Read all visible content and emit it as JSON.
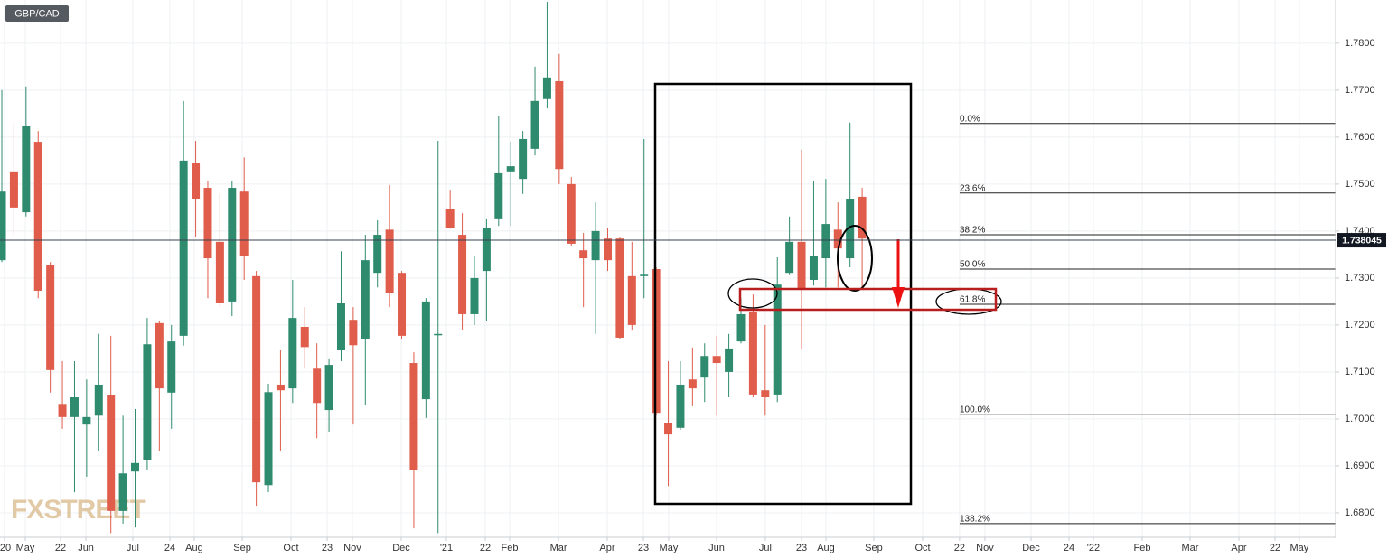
{
  "chart_data": {
    "type": "candlestick",
    "symbol": "GBP/CAD",
    "watermark": "FXSTREET",
    "up_color": "#2e8b6e",
    "down_color": "#e05c4b",
    "grid": true,
    "ylim": [
      1.6748,
      1.7892
    ],
    "yticks": [
      {
        "value": 1.68,
        "label": "1.6800"
      },
      {
        "value": 1.69,
        "label": "1.6900"
      },
      {
        "value": 1.7,
        "label": "1.7000"
      },
      {
        "value": 1.71,
        "label": "1.7100"
      },
      {
        "value": 1.72,
        "label": "1.7200"
      },
      {
        "value": 1.73,
        "label": "1.7300"
      },
      {
        "value": 1.74,
        "label": "1.7400"
      },
      {
        "value": 1.75,
        "label": "1.7500"
      },
      {
        "value": 1.76,
        "label": "1.7600"
      },
      {
        "value": 1.77,
        "label": "1.7700"
      },
      {
        "value": 1.78,
        "label": "1.7800"
      }
    ],
    "xlim": [
      -0.15,
      110.07
    ],
    "xticks": [
      {
        "value": 0.22,
        "label": "'20"
      },
      {
        "value": 1.94,
        "label": "May"
      },
      {
        "value": 4.85,
        "label": "22"
      },
      {
        "value": 6.94,
        "label": "Jun"
      },
      {
        "value": 10.81,
        "label": "Jul"
      },
      {
        "value": 13.87,
        "label": "24"
      },
      {
        "value": 15.88,
        "label": "Aug"
      },
      {
        "value": 19.84,
        "label": "Sep"
      },
      {
        "value": 23.86,
        "label": "Oct"
      },
      {
        "value": 26.85,
        "label": "23"
      },
      {
        "value": 28.93,
        "label": "Nov"
      },
      {
        "value": 32.96,
        "label": "Dec"
      },
      {
        "value": 36.69,
        "label": "'21"
      },
      {
        "value": 39.9,
        "label": "22"
      },
      {
        "value": 41.91,
        "label": "Feb"
      },
      {
        "value": 45.94,
        "label": "Mar"
      },
      {
        "value": 49.96,
        "label": "Apr"
      },
      {
        "value": 52.95,
        "label": "23"
      },
      {
        "value": 55.03,
        "label": "May"
      },
      {
        "value": 58.99,
        "label": "Jun"
      },
      {
        "value": 63.01,
        "label": "Jul"
      },
      {
        "value": 66.0,
        "label": "23"
      },
      {
        "value": 68.01,
        "label": "Aug"
      },
      {
        "value": 71.96,
        "label": "Sep"
      },
      {
        "value": 75.99,
        "label": "Oct"
      },
      {
        "value": 79.04,
        "label": "22"
      },
      {
        "value": 81.13,
        "label": "Nov"
      },
      {
        "value": 84.94,
        "label": "Dec"
      },
      {
        "value": 88.07,
        "label": "24"
      },
      {
        "value": 90.08,
        "label": "'22"
      },
      {
        "value": 94.11,
        "label": "Feb"
      },
      {
        "value": 98.06,
        "label": "Mar"
      },
      {
        "value": 102.09,
        "label": "Apr"
      },
      {
        "value": 105.07,
        "label": "22"
      },
      {
        "value": 107.08,
        "label": "May"
      }
    ],
    "open": [
      1.7338,
      1.7527,
      1.744,
      1.759,
      1.7327,
      1.7032,
      1.7004,
      1.6988,
      1.7007,
      1.705,
      1.6804,
      1.6888,
      1.6913,
      1.7204,
      1.7056,
      1.7177,
      1.7544,
      1.7492,
      1.7377,
      1.725,
      1.7484,
      1.7304,
      1.6859,
      1.7073,
      1.7065,
      1.7196,
      1.7107,
      1.7019,
      1.7146,
      1.7211,
      1.7171,
      1.7311,
      1.7403,
      1.7311,
      1.7119,
      1.7042,
      1.7179,
      1.7446,
      1.7392,
      1.7223,
      1.7315,
      1.7427,
      1.7527,
      1.7511,
      1.7575,
      1.7681,
      1.7719,
      1.75,
      1.7359,
      1.7338,
      1.7384,
      1.7384,
      1.7304,
      1.7304,
      1.7319,
      1.6992,
      1.6981,
      1.7084,
      1.7088,
      1.7134,
      1.71,
      1.7165,
      1.7228,
      1.7061,
      1.7052,
      1.7311,
      1.7377,
      1.7296,
      1.7342,
      1.7403,
      1.7342,
      1.7473
    ],
    "high": [
      1.77,
      1.7631,
      1.7708,
      1.7613,
      1.7334,
      1.7123,
      1.7123,
      1.7084,
      1.7181,
      1.7177,
      1.7007,
      1.7021,
      1.7215,
      1.7208,
      1.72,
      1.7677,
      1.7592,
      1.7507,
      1.7479,
      1.7507,
      1.7557,
      1.7315,
      1.7075,
      1.7146,
      1.7296,
      1.7238,
      1.7161,
      1.7127,
      1.7357,
      1.7238,
      1.7392,
      1.7423,
      1.7498,
      1.7315,
      1.7142,
      1.7257,
      1.7592,
      1.7488,
      1.7438,
      1.7346,
      1.7427,
      1.7646,
      1.759,
      1.7613,
      1.775,
      1.7888,
      1.7777,
      1.7515,
      1.7396,
      1.7461,
      1.7407,
      1.7388,
      1.7377,
      1.7596,
      1.7323,
      1.7123,
      1.7123,
      1.7152,
      1.7161,
      1.7177,
      1.7181,
      1.7257,
      1.7265,
      1.72,
      1.7344,
      1.7431,
      1.7573,
      1.7507,
      1.7511,
      1.7461,
      1.7631,
      1.7492
    ],
    "low": [
      1.7334,
      1.7392,
      1.7431,
      1.7257,
      1.7056,
      1.6979,
      1.6844,
      1.6877,
      1.6931,
      1.6757,
      1.6777,
      1.6769,
      1.6892,
      1.6931,
      1.6979,
      1.7156,
      1.7388,
      1.7257,
      1.7238,
      1.7219,
      1.7296,
      1.6815,
      1.6844,
      1.6931,
      1.7034,
      1.7107,
      1.6959,
      1.6973,
      1.7123,
      1.6988,
      1.703,
      1.728,
      1.7238,
      1.7169,
      1.6767,
      1.7002,
      1.6757,
      1.7405,
      1.719,
      1.72,
      1.7208,
      1.7411,
      1.7411,
      1.7479,
      1.7561,
      1.7661,
      1.75,
      1.7369,
      1.7238,
      1.7181,
      1.7315,
      1.7169,
      1.7188,
      1.7257,
      1.7007,
      1.6857,
      1.6977,
      1.7027,
      1.7036,
      1.7007,
      1.7046,
      1.7161,
      1.7046,
      1.7007,
      1.7036,
      1.7306,
      1.715,
      1.7284,
      1.728,
      1.728,
      1.7323,
      1.7277
    ],
    "close": [
      1.7484,
      1.745,
      1.7623,
      1.7273,
      1.7104,
      1.7004,
      1.7046,
      1.7004,
      1.7073,
      1.6804,
      1.6884,
      1.6906,
      1.7159,
      1.7065,
      1.7165,
      1.755,
      1.7469,
      1.7342,
      1.7246,
      1.7492,
      1.7346,
      1.6865,
      1.7057,
      1.7061,
      1.7215,
      1.7153,
      1.7034,
      1.7115,
      1.7246,
      1.7157,
      1.7338,
      1.7392,
      1.7269,
      1.7177,
      1.6892,
      1.725,
      1.7181,
      1.7407,
      1.7223,
      1.73,
      1.7407,
      1.7523,
      1.7538,
      1.7596,
      1.7677,
      1.7727,
      1.7532,
      1.7373,
      1.7342,
      1.74,
      1.7338,
      1.7173,
      1.72,
      1.7307,
      1.7013,
      1.6967,
      1.7073,
      1.7065,
      1.7134,
      1.7119,
      1.715,
      1.7223,
      1.7052,
      1.7046,
      1.7286,
      1.7377,
      1.7277,
      1.7346,
      1.7415,
      1.7363,
      1.7469,
      1.7384
    ],
    "last_price": 1.738045,
    "fib_levels": [
      {
        "label": "0.0%",
        "value": 1.7629
      },
      {
        "label": "23.6%",
        "value": 1.7481
      },
      {
        "label": "38.2%",
        "value": 1.7392
      },
      {
        "label": "50.0%",
        "value": 1.7319
      },
      {
        "label": "61.8%",
        "value": 1.7244
      },
      {
        "label": "100.0%",
        "value": 1.701
      },
      {
        "label": "138.2%",
        "value": 1.6777
      }
    ]
  }
}
